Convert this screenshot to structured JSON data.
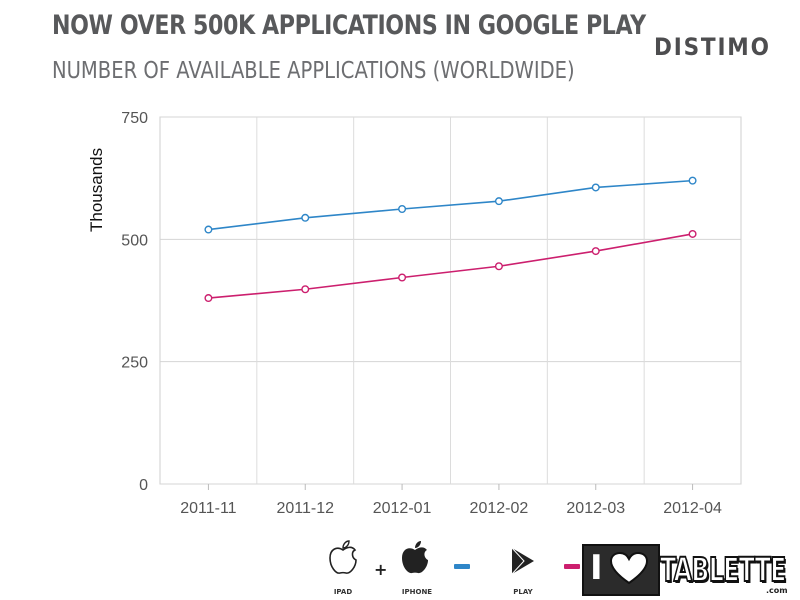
{
  "header": {
    "title": "NOW OVER 500K APPLICATIONS IN GOOGLE PLAY",
    "subtitle": "NUMBER OF AVAILABLE APPLICATIONS (WORLDWIDE)",
    "brand": "DISTIMO"
  },
  "chart_data": {
    "type": "line",
    "title": "NOW OVER 500K APPLICATIONS IN GOOGLE PLAY",
    "subtitle": "NUMBER OF AVAILABLE APPLICATIONS (WORLDWIDE)",
    "categories": [
      "2011-11",
      "2011-12",
      "2012-01",
      "2012-02",
      "2012-03",
      "2012-04"
    ],
    "series": [
      {
        "name": "iPad + iPhone",
        "color": "#2e86c8",
        "values": [
          520,
          544,
          562,
          578,
          606,
          620
        ]
      },
      {
        "name": "Play",
        "color": "#cc1f6e",
        "values": [
          380,
          398,
          422,
          445,
          476,
          511
        ]
      }
    ],
    "xlabel": "",
    "ylabel": "Thousands",
    "ylim": [
      0,
      750
    ],
    "yticks": [
      0,
      250,
      500,
      750
    ],
    "grid": true
  },
  "legend": {
    "ipad_label": "IPAD",
    "plus": "+",
    "iphone_label": "IPHONE",
    "play_label": "PLAY",
    "colors": {
      "apple": "#2e86c8",
      "play": "#cc1f6e"
    }
  },
  "watermark": {
    "text": "TABLETTE",
    "suffix": ".com"
  }
}
